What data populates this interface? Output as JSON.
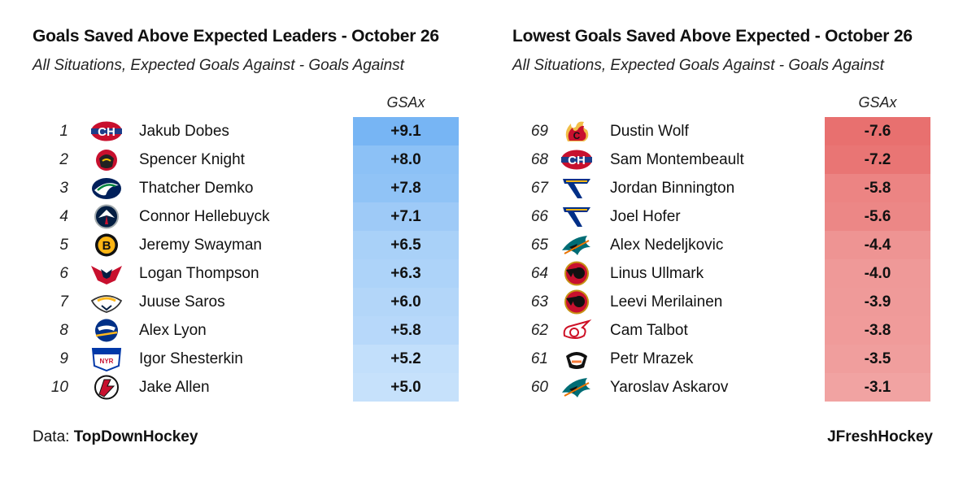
{
  "chart_data": [
    {
      "type": "table",
      "title": "Goals Saved Above Expected Leaders - October 26",
      "subtitle": "All Situations, Expected Goals Against - Goals Against",
      "column_label": "GSAx",
      "color_scale": "blue",
      "rows": [
        {
          "rank": "1",
          "player": "Jakub Dobes",
          "team_logo": "canadiens-logo-icon",
          "gsax": 9.1,
          "label": "+9.1"
        },
        {
          "rank": "2",
          "player": "Spencer Knight",
          "team_logo": "blackhawks-logo-icon",
          "gsax": 8.0,
          "label": "+8.0"
        },
        {
          "rank": "3",
          "player": "Thatcher Demko",
          "team_logo": "canucks-logo-icon",
          "gsax": 7.8,
          "label": "+7.8"
        },
        {
          "rank": "4",
          "player": "Connor Hellebuyck",
          "team_logo": "jets-logo-icon",
          "gsax": 7.1,
          "label": "+7.1"
        },
        {
          "rank": "5",
          "player": "Jeremy Swayman",
          "team_logo": "bruins-logo-icon",
          "gsax": 6.5,
          "label": "+6.5"
        },
        {
          "rank": "6",
          "player": "Logan Thompson",
          "team_logo": "capitals-logo-icon",
          "gsax": 6.3,
          "label": "+6.3"
        },
        {
          "rank": "7",
          "player": "Juuse Saros",
          "team_logo": "predators-logo-icon",
          "gsax": 6.0,
          "label": "+6.0"
        },
        {
          "rank": "8",
          "player": "Alex Lyon",
          "team_logo": "sabres-logo-icon",
          "gsax": 5.8,
          "label": "+5.8"
        },
        {
          "rank": "9",
          "player": "Igor Shesterkin",
          "team_logo": "rangers-logo-icon",
          "gsax": 5.2,
          "label": "+5.2"
        },
        {
          "rank": "10",
          "player": "Jake Allen",
          "team_logo": "devils-logo-icon",
          "gsax": 5.0,
          "label": "+5.0"
        }
      ]
    },
    {
      "type": "table",
      "title": "Lowest Goals Saved Above Expected - October 26",
      "subtitle": "All Situations, Expected Goals Against - Goals Against",
      "column_label": "GSAx",
      "color_scale": "red",
      "rows": [
        {
          "rank": "69",
          "player": "Dustin Wolf",
          "team_logo": "flames-logo-icon",
          "gsax": -7.6,
          "label": "-7.6"
        },
        {
          "rank": "68",
          "player": "Sam Montembeault",
          "team_logo": "canadiens-logo-icon",
          "gsax": -7.2,
          "label": "-7.2"
        },
        {
          "rank": "67",
          "player": "Jordan Binnington",
          "team_logo": "blues-logo-icon",
          "gsax": -5.8,
          "label": "-5.8"
        },
        {
          "rank": "66",
          "player": "Joel Hofer",
          "team_logo": "blues-logo-icon",
          "gsax": -5.6,
          "label": "-5.6"
        },
        {
          "rank": "65",
          "player": "Alex Nedeljkovic",
          "team_logo": "sharks-logo-icon",
          "gsax": -4.4,
          "label": "-4.4"
        },
        {
          "rank": "64",
          "player": "Linus Ullmark",
          "team_logo": "senators-logo-icon",
          "gsax": -4.0,
          "label": "-4.0"
        },
        {
          "rank": "63",
          "player": "Leevi Merilainen",
          "team_logo": "senators-logo-icon",
          "gsax": -3.9,
          "label": "-3.9"
        },
        {
          "rank": "62",
          "player": "Cam Talbot",
          "team_logo": "red-wings-logo-icon",
          "gsax": -3.8,
          "label": "-3.8"
        },
        {
          "rank": "61",
          "player": "Petr Mrazek",
          "team_logo": "ducks-logo-icon",
          "gsax": -3.5,
          "label": "-3.5"
        },
        {
          "rank": "60",
          "player": "Yaroslav Askarov",
          "team_logo": "sharks-logo-icon",
          "gsax": -3.1,
          "label": "-3.1"
        }
      ]
    }
  ],
  "footer": {
    "data_prefix": "Data:",
    "data_source": "TopDownHockey",
    "credit": "JFreshHockey"
  },
  "colors": {
    "blue_strong": "#77b5f4",
    "blue_light": "#c6e1fb",
    "red_strong": "#e8706f",
    "red_light": "#f1a3a2"
  }
}
